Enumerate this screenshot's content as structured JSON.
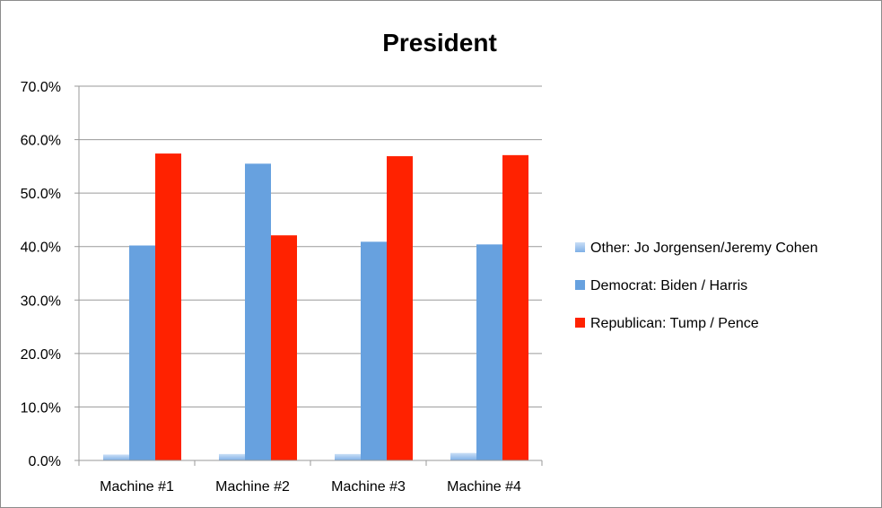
{
  "chart_data": {
    "type": "bar",
    "title": "President",
    "xlabel": "",
    "ylabel": "",
    "ylim": [
      0,
      0.7
    ],
    "y_tick_step": 0.1,
    "y_tick_format": "percent-1dp",
    "grid": true,
    "legend_position": "right",
    "categories": [
      "Machine #1",
      "Machine #2",
      "Machine #3",
      "Machine #4"
    ],
    "series": [
      {
        "name": "Other: Jo Jorgensen/Jeremy Cohen",
        "color": "#9fc4ee",
        "values": [
          0.011,
          0.012,
          0.012,
          0.014
        ]
      },
      {
        "name": "Democrat: Biden / Harris",
        "color": "#67a1df",
        "values": [
          0.402,
          0.555,
          0.409,
          0.404
        ]
      },
      {
        "name": "Republican: Tump / Pence",
        "color": "#ff2200",
        "values": [
          0.574,
          0.421,
          0.569,
          0.571
        ]
      }
    ]
  }
}
